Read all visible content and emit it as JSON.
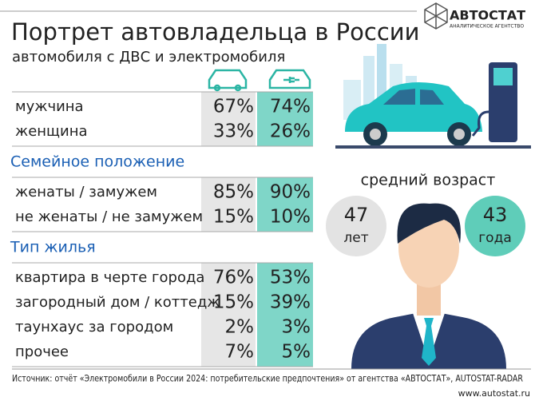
{
  "header": {
    "title": "Портрет автовладельца в России",
    "subtitle": "автомобиля с ДВС и электромобиля",
    "logo": "АВТОСТАТ",
    "logo_sub": "АНАЛИТИЧЕСКОЕ АГЕНТСТВО"
  },
  "sections": [
    {
      "rows": [
        {
          "label": "мужчина",
          "ice": "67%",
          "ev": "74%"
        },
        {
          "label": "женщина",
          "ice": "33%",
          "ev": "26%"
        }
      ]
    },
    {
      "title": "Семейное положение",
      "rows": [
        {
          "label": "женаты / замужем",
          "ice": "85%",
          "ev": "90%"
        },
        {
          "label": "не женаты / не замужем",
          "ice": "15%",
          "ev": "10%"
        }
      ]
    },
    {
      "title": "Тип жилья",
      "rows": [
        {
          "label": "квартира в черте города",
          "ice": "76%",
          "ev": "53%"
        },
        {
          "label": "загородный дом / коттедж",
          "ice": "15%",
          "ev": "39%"
        },
        {
          "label": "таунхаус за городом",
          "ice": "2%",
          "ev": "3%"
        },
        {
          "label": "прочее",
          "ice": "7%",
          "ev": "5%"
        }
      ]
    }
  ],
  "age": {
    "label": "средний возраст",
    "ice": {
      "value": "47",
      "unit": "лет"
    },
    "ev": {
      "value": "43",
      "unit": "года"
    }
  },
  "footer": {
    "source": "Источник: отчёт «Электромобили в России 2024: потребительские предпочтения» от агентства «АВТОСТАТ», AUTOSTAT-RADAR",
    "url": "www.autostat.ru"
  }
}
